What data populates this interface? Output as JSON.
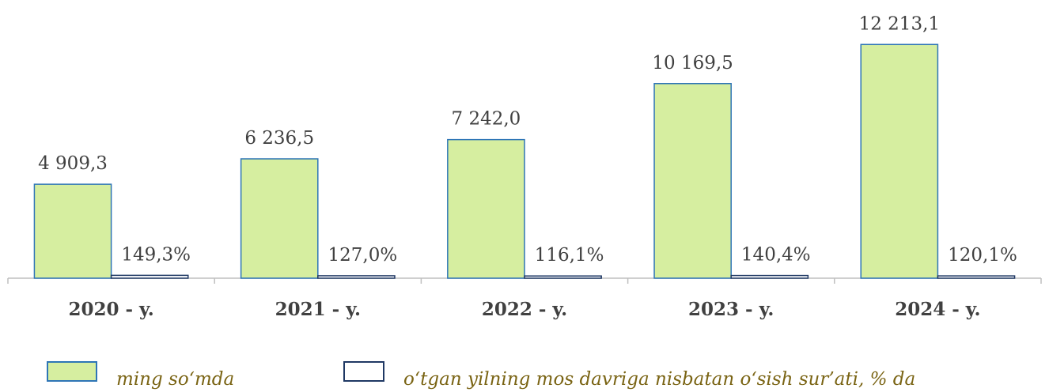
{
  "chart_data": {
    "type": "bar",
    "categories": [
      "2020 - y.",
      "2021 - y.",
      "2022 - y.",
      "2023 - y.",
      "2024 - y."
    ],
    "series": [
      {
        "name": "ming so‘mda",
        "color": "#d6eea0",
        "stroke": "#2e75b6",
        "values": [
          4909.3,
          6236.5,
          7242.0,
          10169.5,
          12213.1
        ],
        "value_labels": [
          "4 909,3",
          "6 236,5",
          "7 242,0",
          "10 169,5",
          "12 213,1"
        ]
      },
      {
        "name": "o‘tgan yilning mos davriga nisbatan o‘sish sur’ati, % da",
        "color": "#ffffff",
        "stroke": "#1f3864",
        "values": [
          149.3,
          127.0,
          116.1,
          140.4,
          120.1
        ],
        "value_labels": [
          "149,3%",
          "127,0%",
          "116,1%",
          "140,4%",
          "120,1%"
        ]
      }
    ],
    "ylim": [
      0,
      14000
    ],
    "legend": "bottom"
  }
}
